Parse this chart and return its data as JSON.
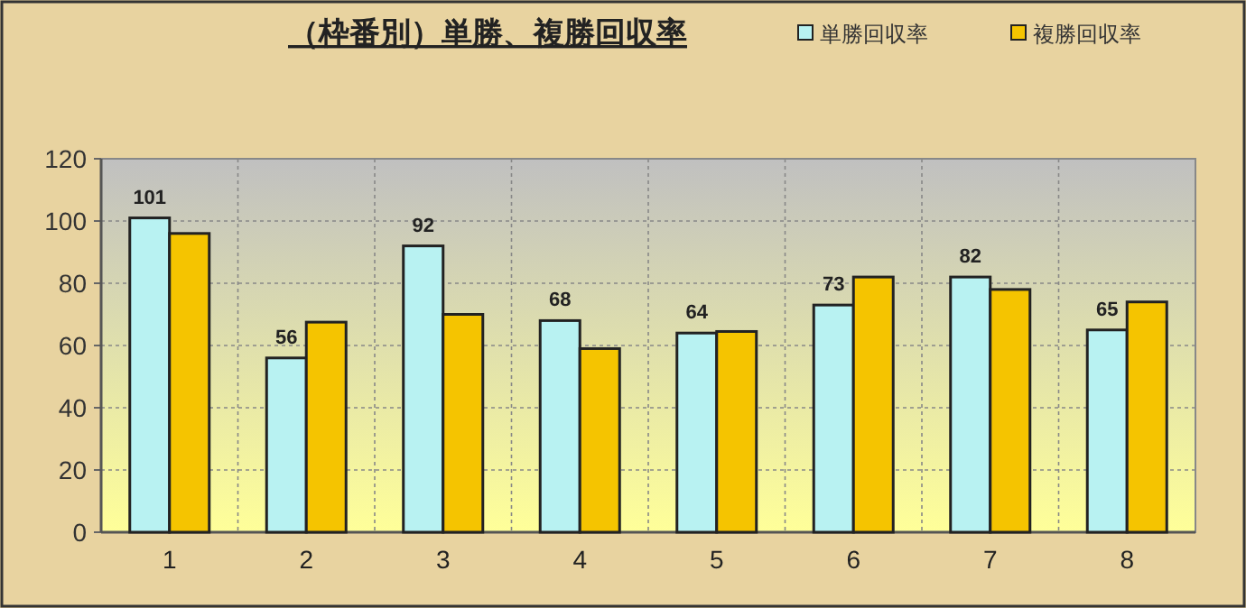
{
  "chart_data": {
    "type": "bar",
    "title": "（枠番別）単勝、複勝回収率",
    "categories": [
      "1",
      "2",
      "3",
      "4",
      "5",
      "6",
      "7",
      "8"
    ],
    "series": [
      {
        "name": "単勝回収率",
        "color": "#b8f2f2",
        "values": [
          101,
          56,
          92,
          68,
          64,
          73,
          82,
          65
        ],
        "value_labels": [
          "101",
          "56",
          "92",
          "68",
          "64",
          "73",
          "82",
          "65"
        ]
      },
      {
        "name": "複勝回収率",
        "color": "#f5c400",
        "values": [
          96,
          67.5,
          70,
          59,
          64.5,
          82,
          78,
          74
        ]
      }
    ],
    "ylim": [
      0,
      120
    ],
    "yticks": [
      0,
      20,
      40,
      60,
      80,
      100,
      120
    ],
    "grid": true,
    "legend": "top right"
  }
}
